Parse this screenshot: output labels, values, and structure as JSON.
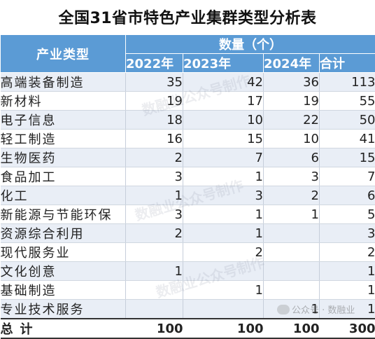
{
  "title": "全国31省市特色产业集群类型分析表",
  "header": {
    "type_label": "产业类型",
    "group_label": "数量（个）",
    "years": [
      "2022年",
      "2023年",
      "2024年"
    ],
    "total_label": "合计"
  },
  "rows": [
    {
      "type": "高端装备制造",
      "y2022": "35",
      "y2023": "42",
      "y2024": "36",
      "total": "113"
    },
    {
      "type": "新材料",
      "y2022": "19",
      "y2023": "17",
      "y2024": "19",
      "total": "55"
    },
    {
      "type": "电子信息",
      "y2022": "18",
      "y2023": "10",
      "y2024": "22",
      "total": "50"
    },
    {
      "type": "轻工制造",
      "y2022": "16",
      "y2023": "15",
      "y2024": "10",
      "total": "41"
    },
    {
      "type": "生物医药",
      "y2022": "2",
      "y2023": "7",
      "y2024": "6",
      "total": "15"
    },
    {
      "type": "食品加工",
      "y2022": "3",
      "y2023": "1",
      "y2024": "3",
      "total": "7"
    },
    {
      "type": "化工",
      "y2022": "1",
      "y2023": "3",
      "y2024": "2",
      "total": "6"
    },
    {
      "type": "新能源与节能环保",
      "y2022": "3",
      "y2023": "1",
      "y2024": "1",
      "total": "5"
    },
    {
      "type": "资源综合利用",
      "y2022": "2",
      "y2023": "1",
      "y2024": "",
      "total": "3"
    },
    {
      "type": "现代服务业",
      "y2022": "",
      "y2023": "2",
      "y2024": "",
      "total": "2"
    },
    {
      "type": "文化创意",
      "y2022": "1",
      "y2023": "",
      "y2024": "",
      "total": "1"
    },
    {
      "type": "基础制造",
      "y2022": "",
      "y2023": "1",
      "y2024": "",
      "total": "1"
    },
    {
      "type": "专业技术服务",
      "y2022": "",
      "y2023": "",
      "y2024": "1",
      "total": "1"
    }
  ],
  "total_row": {
    "type": "总计",
    "y2022": "100",
    "y2023": "100",
    "y2024": "100",
    "total": "300"
  },
  "watermark": "数融业公众号制作",
  "wechat_badge": "公众号 · 数融业",
  "colors": {
    "header_bg": "#5b9bd5",
    "stripe": "#e9eef6"
  }
}
